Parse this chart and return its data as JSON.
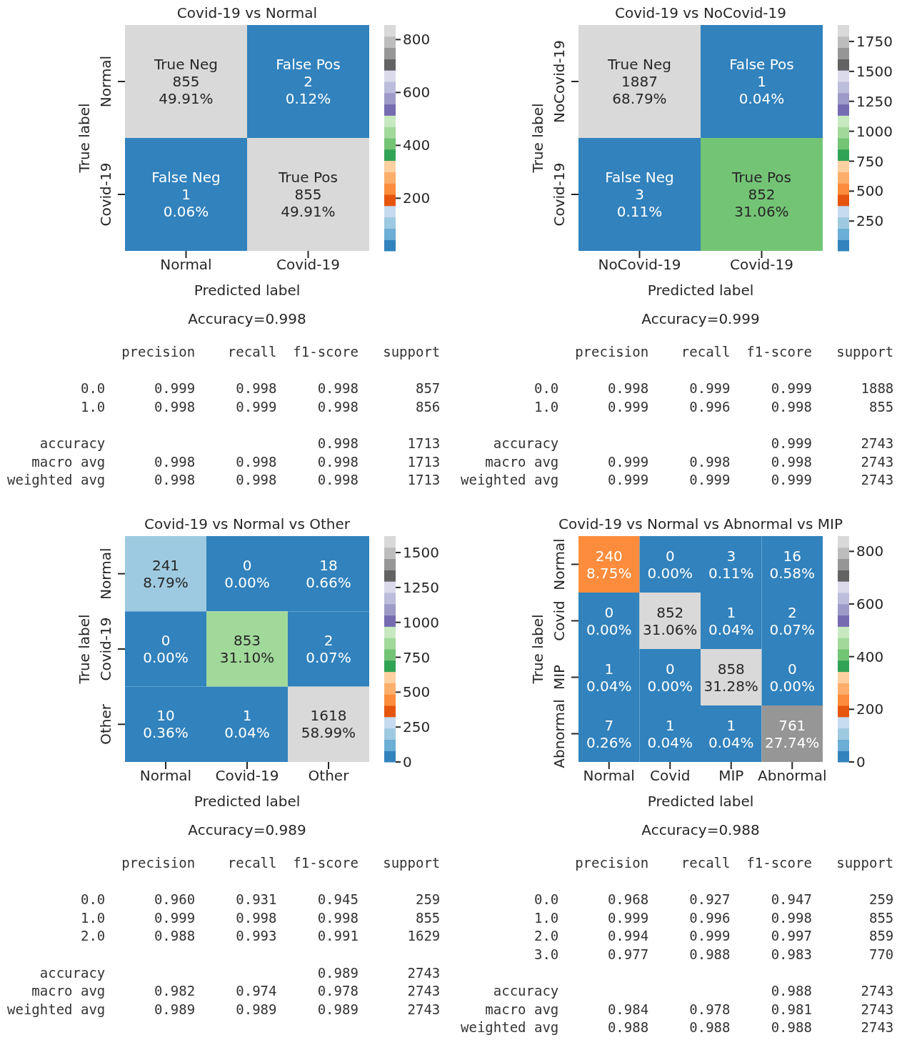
{
  "chart_data": [
    {
      "type": "heatmap",
      "title": "Covid-19 vs Normal",
      "xlabel": "Predicted label",
      "ylabel": "True label",
      "categories": [
        "Normal",
        "Covid-19"
      ],
      "y_categories": [
        "Normal",
        "Covid-19"
      ],
      "cells": [
        [
          855,
          2
        ],
        [
          1,
          855
        ]
      ],
      "cell_labels": [
        [
          "True Neg\n855\n49.91%",
          "False Pos\n2\n0.12%"
        ],
        [
          "False Neg\n1\n0.06%",
          "True Pos\n855\n49.91%"
        ]
      ],
      "clim": [
        1,
        855
      ],
      "cticks": [
        200,
        400,
        600,
        800
      ]
    },
    {
      "type": "heatmap",
      "title": "Covid-19 vs NoCovid-19",
      "xlabel": "Predicted label",
      "ylabel": "True label",
      "categories": [
        "NoCovid-19",
        "Covid-19"
      ],
      "y_categories": [
        "NoCovid-19",
        "Covid-19"
      ],
      "cells": [
        [
          1887,
          1
        ],
        [
          3,
          852
        ]
      ],
      "cell_labels": [
        [
          "True Neg\n1887\n68.79%",
          "False Pos\n1\n0.04%"
        ],
        [
          "False Neg\n3\n0.11%",
          "True Pos\n852\n31.06%"
        ]
      ],
      "clim": [
        1,
        1887
      ],
      "cticks": [
        250,
        500,
        750,
        1000,
        1250,
        1500,
        1750
      ]
    },
    {
      "type": "other",
      "title": "Accuracy=0.998",
      "annotations": [
        "              precision    recall  f1-score   support",
        "         0.0      0.999     0.998     0.998       857",
        "         1.0      0.998     0.999     0.998       856",
        "    accuracy                          0.998      1713",
        "   macro avg      0.998     0.998     0.998      1713",
        "weighted avg      0.998     0.998     0.998      1713"
      ]
    },
    {
      "type": "other",
      "title": "Accuracy=0.999",
      "annotations": [
        "              precision    recall  f1-score   support",
        "         0.0      0.998     0.999     0.999      1888",
        "         1.0      0.999     0.996     0.998       855",
        "    accuracy                          0.999      2743",
        "   macro avg      0.999     0.998     0.998      2743",
        "weighted avg      0.999     0.999     0.999      2743"
      ]
    },
    {
      "type": "heatmap",
      "title": "Covid-19 vs Normal vs Other",
      "xlabel": "Predicted label",
      "ylabel": "True label",
      "categories": [
        "Normal",
        "Covid-19",
        "Other"
      ],
      "y_categories": [
        "Normal",
        "Covid-19",
        "Other"
      ],
      "cells": [
        [
          241,
          0,
          18
        ],
        [
          0,
          853,
          2
        ],
        [
          10,
          1,
          1618
        ]
      ],
      "cell_labels": [
        [
          "241\n8.79%",
          "0\n0.00%",
          "18\n0.66%"
        ],
        [
          "0\n0.00%",
          "853\n31.10%",
          "2\n0.07%"
        ],
        [
          "10\n0.36%",
          "1\n0.04%",
          "1618\n58.99%"
        ]
      ],
      "clim": [
        0,
        1618
      ],
      "cticks": [
        0,
        250,
        500,
        750,
        1000,
        1250,
        1500
      ]
    },
    {
      "type": "heatmap",
      "title": "Covid-19 vs Normal vs Abnormal vs MIP",
      "xlabel": "Predicted label",
      "ylabel": "True label",
      "categories": [
        "Normal",
        "Covid",
        "MIP",
        "Abnormal"
      ],
      "y_categories": [
        "Normal",
        "Covid",
        "MIP",
        "Abnormal"
      ],
      "cells": [
        [
          240,
          0,
          3,
          16
        ],
        [
          0,
          852,
          1,
          2
        ],
        [
          1,
          0,
          858,
          0
        ],
        [
          7,
          1,
          1,
          761
        ]
      ],
      "cell_labels": [
        [
          "240\n8.75%",
          "0\n0.00%",
          "3\n0.11%",
          "16\n0.58%"
        ],
        [
          "0\n0.00%",
          "852\n31.06%",
          "1\n0.04%",
          "2\n0.07%"
        ],
        [
          "1\n0.04%",
          "0\n0.00%",
          "858\n31.28%",
          "0\n0.00%"
        ],
        [
          "7\n0.26%",
          "1\n0.04%",
          "1\n0.04%",
          "761\n27.74%"
        ]
      ],
      "clim": [
        0,
        858
      ],
      "cticks": [
        0,
        200,
        400,
        600,
        800
      ]
    },
    {
      "type": "other",
      "title": "Accuracy=0.989",
      "annotations": [
        "              precision    recall  f1-score   support",
        "         0.0      0.960     0.931     0.945       259",
        "         1.0      0.999     0.998     0.998       855",
        "         2.0      0.988     0.993     0.991      1629",
        "    accuracy                          0.989      2743",
        "   macro avg      0.982     0.974     0.978      2743",
        "weighted avg      0.989     0.989     0.989      2743"
      ]
    },
    {
      "type": "other",
      "title": "Accuracy=0.988",
      "annotations": [
        "              precision    recall  f1-score   support",
        "         0.0      0.968     0.927     0.947       259",
        "         1.0      0.999     0.996     0.998       855",
        "         2.0      0.994     0.999     0.997       859",
        "         3.0      0.977     0.988     0.983       770",
        "    accuracy                          0.988      2743",
        "   macro avg      0.984     0.978     0.981      2743",
        "weighted avg      0.988     0.988     0.988      2743"
      ]
    }
  ]
}
